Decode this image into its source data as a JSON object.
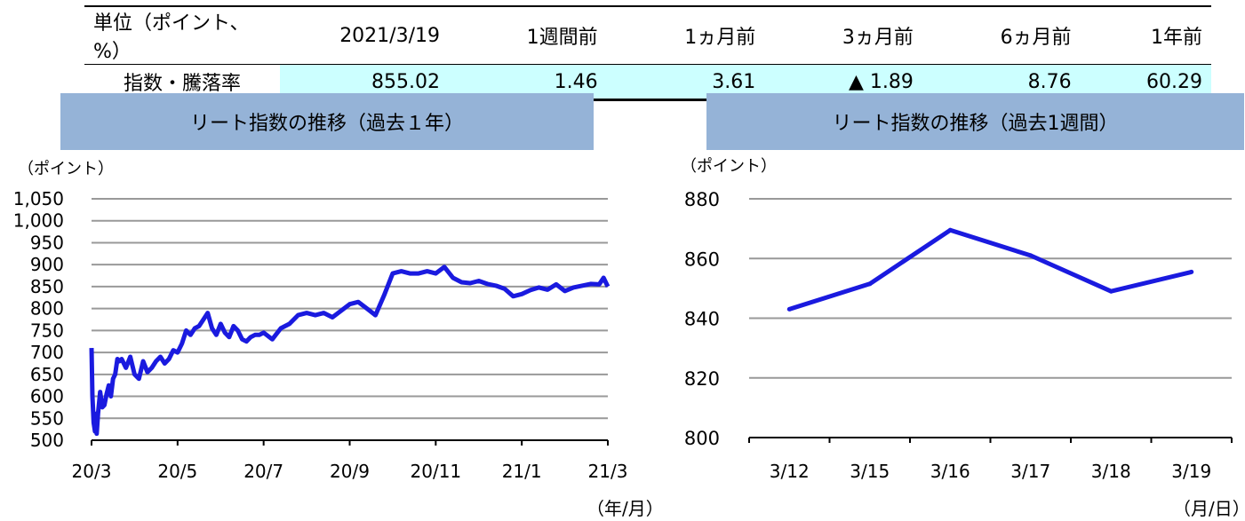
{
  "table": {
    "header": [
      "単位（ポイント、%）",
      "2021/3/19",
      "1週間前",
      "1ヵ月前",
      "3ヵ月前",
      "6ヵ月前",
      "1年前"
    ],
    "row_label": "指数・騰落率",
    "values": [
      "855.02",
      "1.46",
      "3.61",
      "▲ 1.89",
      "8.76",
      "60.29"
    ]
  },
  "chart_data": [
    {
      "type": "line",
      "title": "リート指数の推移（過去１年）",
      "ylabel": "（ポイント）",
      "xlabel": "（年/月）",
      "ylim": [
        500,
        1050
      ],
      "yticks": [
        500,
        550,
        600,
        650,
        700,
        750,
        800,
        850,
        900,
        950,
        1000,
        1050
      ],
      "ytick_labels": [
        "500",
        "550",
        "600",
        "650",
        "700",
        "750",
        "800",
        "850",
        "900",
        "950",
        "1,000",
        "1,050"
      ],
      "xtick_labels": [
        "20/3",
        "20/5",
        "20/7",
        "20/9",
        "20/11",
        "21/1",
        "21/3"
      ],
      "xlim": [
        0,
        12
      ],
      "grid": true,
      "color": "#1a1adf",
      "x": [
        0,
        0.02,
        0.05,
        0.08,
        0.1,
        0.12,
        0.15,
        0.2,
        0.25,
        0.3,
        0.35,
        0.4,
        0.45,
        0.5,
        0.55,
        0.6,
        0.65,
        0.7,
        0.8,
        0.9,
        1.0,
        1.1,
        1.2,
        1.3,
        1.4,
        1.5,
        1.6,
        1.7,
        1.8,
        1.9,
        2.0,
        2.1,
        2.2,
        2.3,
        2.4,
        2.5,
        2.6,
        2.7,
        2.8,
        2.9,
        3.0,
        3.1,
        3.2,
        3.3,
        3.4,
        3.5,
        3.6,
        3.7,
        3.8,
        3.9,
        4.0,
        4.2,
        4.4,
        4.6,
        4.8,
        5.0,
        5.2,
        5.4,
        5.6,
        5.8,
        6.0,
        6.2,
        6.4,
        6.6,
        6.8,
        7.0,
        7.2,
        7.4,
        7.6,
        7.8,
        8.0,
        8.2,
        8.4,
        8.6,
        8.8,
        9.0,
        9.2,
        9.4,
        9.6,
        9.8,
        10.0,
        10.2,
        10.4,
        10.6,
        10.8,
        11.0,
        11.2,
        11.4,
        11.6,
        11.8,
        11.9,
        12.0
      ],
      "y": [
        710,
        600,
        540,
        520,
        560,
        515,
        560,
        610,
        575,
        580,
        605,
        625,
        600,
        640,
        650,
        685,
        680,
        685,
        665,
        690,
        650,
        640,
        680,
        655,
        665,
        680,
        690,
        675,
        685,
        705,
        700,
        720,
        750,
        740,
        755,
        760,
        775,
        790,
        755,
        740,
        765,
        745,
        735,
        760,
        750,
        730,
        725,
        735,
        740,
        740,
        745,
        730,
        755,
        765,
        785,
        790,
        785,
        790,
        780,
        795,
        810,
        815,
        800,
        785,
        830,
        880,
        885,
        880,
        880,
        885,
        880,
        895,
        870,
        860,
        858,
        863,
        856,
        852,
        845,
        828,
        833,
        842,
        848,
        843,
        855,
        840,
        848,
        852,
        856,
        855,
        870,
        850
      ]
    },
    {
      "type": "line",
      "title": "リート指数の推移（過去1週間）",
      "ylabel": "（ポイント）",
      "xlabel": "（月/日）",
      "ylim": [
        800,
        880
      ],
      "yticks": [
        800,
        820,
        840,
        860,
        880
      ],
      "categories": [
        "3/12",
        "3/15",
        "3/16",
        "3/17",
        "3/18",
        "3/19"
      ],
      "values": [
        843,
        851.5,
        869.5,
        861,
        849,
        855.5
      ],
      "grid": true,
      "color": "#1a1adf"
    }
  ]
}
